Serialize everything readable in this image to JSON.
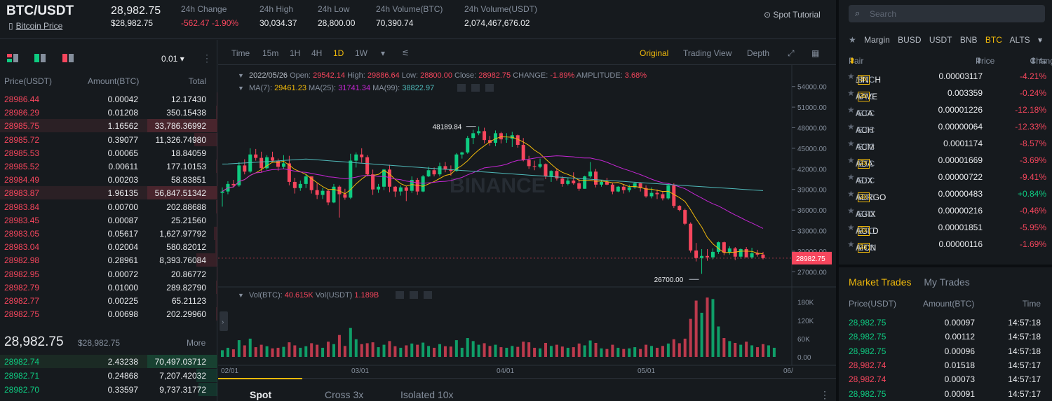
{
  "header": {
    "pair": "BTC/USDT",
    "subtitle": "Bitcoin Price",
    "last_price": "28,982.75",
    "last_price_usd": "$28,982.75",
    "stats": [
      {
        "label": "24h Change",
        "value": "-562.47 -1.90%",
        "red": true
      },
      {
        "label": "24h High",
        "value": "30,034.37"
      },
      {
        "label": "24h Low",
        "value": "28,800.00"
      },
      {
        "label": "24h Volume(BTC)",
        "value": "70,390.74"
      },
      {
        "label": "24h Volume(USDT)",
        "value": "2,074,467,676.02"
      }
    ],
    "tutorial": "Spot Tutorial"
  },
  "orderbook": {
    "tick": "0.01",
    "headers": {
      "price": "Price(USDT)",
      "amount": "Amount(BTC)",
      "total": "Total"
    },
    "asks": [
      {
        "p": "28986.44",
        "a": "0.00042",
        "t": "12.17430",
        "d": 0.01
      },
      {
        "p": "28986.29",
        "a": "0.01208",
        "t": "350.15438",
        "d": 0.02
      },
      {
        "p": "28985.75",
        "a": "1.16562",
        "t": "33,786.36992",
        "d": 1.0,
        "hl": true
      },
      {
        "p": "28985.72",
        "a": "0.39077",
        "t": "11,326.74980",
        "d": 0.33
      },
      {
        "p": "28985.53",
        "a": "0.00065",
        "t": "18.84059",
        "d": 0.01
      },
      {
        "p": "28985.52",
        "a": "0.00611",
        "t": "177.10153",
        "d": 0.02
      },
      {
        "p": "28984.49",
        "a": "0.00203",
        "t": "58.83851",
        "d": 0.01
      },
      {
        "p": "28983.87",
        "a": "1.96135",
        "t": "56,847.51342",
        "d": 1.0,
        "hl": true
      },
      {
        "p": "28983.84",
        "a": "0.00700",
        "t": "202.88688",
        "d": 0.02
      },
      {
        "p": "28983.45",
        "a": "0.00087",
        "t": "25.21560",
        "d": 0.01
      },
      {
        "p": "28983.05",
        "a": "0.05617",
        "t": "1,627.97792",
        "d": 0.05
      },
      {
        "p": "28983.04",
        "a": "0.02004",
        "t": "580.82012",
        "d": 0.03
      },
      {
        "p": "28982.98",
        "a": "0.28961",
        "t": "8,393.76084",
        "d": 0.3
      },
      {
        "p": "28982.95",
        "a": "0.00072",
        "t": "20.86772",
        "d": 0.01
      },
      {
        "p": "28982.79",
        "a": "0.01000",
        "t": "289.82790",
        "d": 0.02
      },
      {
        "p": "28982.77",
        "a": "0.00225",
        "t": "65.21123",
        "d": 0.01
      },
      {
        "p": "28982.75",
        "a": "0.00698",
        "t": "202.29960",
        "d": 0.02
      }
    ],
    "mid_price": "28,982.75",
    "mid_usd": "$28,982.75",
    "more": "More",
    "bids": [
      {
        "p": "28982.74",
        "a": "2.43238",
        "t": "70,497.03712",
        "d": 1.0,
        "hl": true
      },
      {
        "p": "28982.71",
        "a": "0.24868",
        "t": "7,207.42032",
        "d": 0.3
      },
      {
        "p": "28982.70",
        "a": "0.33597",
        "t": "9,737.31772",
        "d": 0.27
      }
    ]
  },
  "chart": {
    "toolbar": {
      "intervals": [
        "Time",
        "15m",
        "1H",
        "4H",
        "1D",
        "1W"
      ],
      "active_interval": "1D",
      "views": [
        "Original",
        "Trading View",
        "Depth"
      ],
      "active_view": "Original"
    },
    "ohlc_line": {
      "date": "2022/05/26",
      "open_label": "Open:",
      "open": "29542.14",
      "high_label": "High:",
      "high": "29886.64",
      "low_label": "Low:",
      "low": "28800.00",
      "close_label": "Close:",
      "close": "28982.75",
      "change_label": "CHANGE:",
      "change": "-1.89%",
      "amp_label": "AMPLITUDE:",
      "amp": "3.68%"
    },
    "ma_line": {
      "ma7_label": "MA(7):",
      "ma7": "29461.23",
      "ma25_label": "MA(25):",
      "ma25": "31741.34",
      "ma99_label": "MA(99):",
      "ma99": "38822.97"
    },
    "vol_line": {
      "vbtc_label": "Vol(BTC):",
      "vbtc": "40.615K",
      "vusdt_label": "Vol(USDT)",
      "vusdt": "1.189B"
    },
    "watermark": "BINANCE",
    "price_axis": [
      "54000.00",
      "51000.00",
      "48000.00",
      "45000.00",
      "42000.00",
      "39000.00",
      "36000.00",
      "33000.00",
      "30000.00",
      "27000.00"
    ],
    "vol_axis": [
      "180K",
      "120K",
      "60K",
      "0.00"
    ],
    "date_axis": [
      "02/01",
      "03/01",
      "04/01",
      "05/01",
      "06/"
    ],
    "high_marker": "48189.84",
    "low_marker": "26700.00",
    "current_price_tag": "28982.75",
    "colors": {
      "up": "#0ecb81",
      "down": "#f6465d",
      "ma7": "#f0b90b",
      "ma25": "#c526d4",
      "ma99": "#4fb9b9"
    }
  },
  "chart_data": {
    "type": "candlestick",
    "interval": "1D",
    "x": [
      "02/01",
      "03/01",
      "04/01",
      "05/01"
    ],
    "price_range": [
      25500,
      55500
    ],
    "volume_range": [
      0,
      200000
    ],
    "candles_ohlc_approx": [
      [
        38500,
        39300,
        36500,
        38700
      ],
      [
        38700,
        40200,
        38300,
        39800
      ],
      [
        39800,
        40400,
        39300,
        39600
      ],
      [
        39600,
        43000,
        39400,
        42500
      ],
      [
        42500,
        43400,
        41200,
        41600
      ],
      [
        41600,
        45000,
        41400,
        44100
      ],
      [
        44100,
        44900,
        43200,
        43600
      ],
      [
        43600,
        44500,
        41500,
        42100
      ],
      [
        42100,
        44000,
        41900,
        43700
      ],
      [
        43700,
        44500,
        42900,
        43200
      ],
      [
        43200,
        43500,
        41700,
        42300
      ],
      [
        42300,
        44000,
        42000,
        42800
      ],
      [
        42800,
        43900,
        39600,
        40100
      ],
      [
        40100,
        40700,
        38400,
        39200
      ],
      [
        39200,
        40300,
        38800,
        39800
      ],
      [
        39800,
        41300,
        39200,
        40900
      ],
      [
        40900,
        40900,
        38400,
        38900
      ],
      [
        38900,
        39900,
        37600,
        38200
      ],
      [
        38200,
        39200,
        37600,
        38800
      ],
      [
        38800,
        39000,
        36700,
        37100
      ],
      [
        37100,
        39800,
        37000,
        39400
      ],
      [
        39400,
        39600,
        34900,
        38300
      ],
      [
        38300,
        39100,
        37500,
        37800
      ],
      [
        37800,
        44200,
        37600,
        43200
      ],
      [
        43200,
        44400,
        42200,
        44100
      ],
      [
        44100,
        45000,
        42900,
        43700
      ],
      [
        43700,
        44000,
        40900,
        41200
      ],
      [
        41200,
        41900,
        38200,
        39000
      ],
      [
        39000,
        39800,
        38500,
        39400
      ],
      [
        39400,
        42000,
        38900,
        41900
      ],
      [
        41900,
        42600,
        38600,
        39400
      ],
      [
        39400,
        39500,
        37900,
        38700
      ],
      [
        38700,
        39600,
        38100,
        39300
      ],
      [
        39300,
        39500,
        37300,
        38800
      ],
      [
        38800,
        40900,
        38500,
        40400
      ],
      [
        40400,
        40700,
        38200,
        38700
      ],
      [
        38700,
        41100,
        38600,
        40900
      ],
      [
        40900,
        42300,
        40800,
        41800
      ],
      [
        41800,
        42200,
        40900,
        41200
      ],
      [
        41200,
        42900,
        40900,
        42400
      ],
      [
        42400,
        43000,
        41500,
        41900
      ],
      [
        41900,
        42500,
        41000,
        41700
      ],
      [
        41700,
        44300,
        41600,
        44100
      ],
      [
        44100,
        44500,
        43500,
        44400
      ],
      [
        44400,
        46800,
        44200,
        46500
      ],
      [
        46500,
        47700,
        45600,
        47200
      ],
      [
        47200,
        48190,
        46900,
        47500
      ],
      [
        47500,
        48000,
        45700,
        46200
      ],
      [
        46200,
        46800,
        45400,
        45800
      ],
      [
        45800,
        47600,
        45300,
        47200
      ],
      [
        47200,
        47400,
        45700,
        46300
      ],
      [
        46300,
        47200,
        45800,
        46400
      ],
      [
        46400,
        47400,
        45200,
        46900
      ],
      [
        46900,
        47000,
        45100,
        45500
      ],
      [
        45500,
        46500,
        43100,
        43300
      ],
      [
        43300,
        43900,
        42000,
        42400
      ],
      [
        42400,
        43200,
        41800,
        42300
      ],
      [
        42300,
        43500,
        42100,
        42700
      ],
      [
        42700,
        42800,
        40500,
        40900
      ],
      [
        40900,
        41800,
        40100,
        41700
      ],
      [
        41700,
        42100,
        40300,
        40600
      ],
      [
        40600,
        40900,
        39400,
        39800
      ],
      [
        39800,
        40700,
        39600,
        40300
      ],
      [
        40300,
        41500,
        39700,
        39900
      ],
      [
        39900,
        40500,
        38800,
        39100
      ],
      [
        39100,
        41000,
        39100,
        40900
      ],
      [
        40900,
        43000,
        40700,
        41600
      ],
      [
        41600,
        42000,
        39300,
        39700
      ],
      [
        39700,
        40400,
        39400,
        40100
      ],
      [
        40100,
        40700,
        39600,
        39700
      ],
      [
        39700,
        40000,
        38300,
        38700
      ],
      [
        38700,
        39500,
        38600,
        39400
      ],
      [
        39400,
        39700,
        38400,
        38900
      ],
      [
        38900,
        39700,
        38600,
        39300
      ],
      [
        39300,
        40100,
        39100,
        39900
      ],
      [
        39900,
        40000,
        38700,
        39200
      ],
      [
        39200,
        39600,
        37800,
        38000
      ],
      [
        38000,
        39300,
        37700,
        38500
      ],
      [
        38500,
        39000,
        37600,
        38300
      ],
      [
        38300,
        38700,
        37400,
        37700
      ],
      [
        37700,
        39900,
        37500,
        39600
      ],
      [
        39600,
        39900,
        36300,
        36600
      ],
      [
        36600,
        36700,
        35800,
        36000
      ],
      [
        36000,
        36200,
        33800,
        34000
      ],
      [
        34000,
        34200,
        29800,
        30100
      ],
      [
        30100,
        31200,
        28500,
        29000
      ],
      [
        29000,
        30300,
        26700,
        29300
      ],
      [
        29300,
        30300,
        28600,
        29100
      ],
      [
        29100,
        30400,
        28800,
        29900
      ],
      [
        29900,
        31400,
        29600,
        31300
      ],
      [
        31300,
        31400,
        29400,
        29800
      ],
      [
        29800,
        30700,
        29500,
        30400
      ],
      [
        30400,
        30600,
        28700,
        29200
      ],
      [
        29200,
        30400,
        28900,
        30300
      ],
      [
        30300,
        30600,
        29300,
        29100
      ],
      [
        29100,
        30500,
        28900,
        29700
      ],
      [
        29700,
        30200,
        29200,
        29500
      ],
      [
        29500,
        29900,
        28800,
        28983
      ]
    ],
    "volume_series": [
      22000,
      30000,
      25000,
      55000,
      38000,
      60000,
      32000,
      40000,
      35000,
      28000,
      30000,
      33000,
      48000,
      38000,
      30000,
      35000,
      45000,
      40000,
      30000,
      50000,
      42000,
      72000,
      36000,
      95000,
      58000,
      42000,
      45000,
      48000,
      32000,
      40000,
      52000,
      35000,
      30000,
      38000,
      44000,
      40000,
      47000,
      36000,
      30000,
      42000,
      35000,
      34000,
      55000,
      30000,
      62000,
      52000,
      40000,
      45000,
      36000,
      40000,
      32000,
      30000,
      36000,
      33000,
      50000,
      48000,
      30000,
      28000,
      46000,
      36000,
      40000,
      34000,
      30000,
      32000,
      44000,
      38000,
      54000,
      46000,
      28000,
      26000,
      40000,
      30000,
      26000,
      28000,
      32000,
      26000,
      40000,
      36000,
      30000,
      36000,
      44000,
      58000,
      45000,
      60000,
      125000,
      185000,
      145000,
      195000,
      190000,
      100000,
      62000,
      52000,
      46000,
      40000,
      50000,
      38000,
      32000,
      42000,
      38000,
      30000
    ],
    "ma7_approx_last": 29461.23,
    "ma25_approx_last": 31741.34,
    "ma99_approx_last": 38822.97
  },
  "bottom_tabs": [
    "Spot",
    "Cross 3x",
    "Isolated 10x"
  ],
  "market": {
    "search_placeholder": "Search",
    "tabs": [
      "Margin",
      "BUSD",
      "USDT",
      "BNB",
      "BTC",
      "ALTS"
    ],
    "active_tab": "BTC",
    "headers": {
      "pair": "Pair",
      "price": "Price",
      "change": "Change"
    },
    "rows": [
      {
        "base": "1INCH",
        "quote": "/BTC",
        "lev": "3x",
        "price": "0.00003117",
        "change": "-4.21%",
        "price_green": true
      },
      {
        "base": "AAVE",
        "quote": "/BTC",
        "lev": "3x",
        "price": "0.003359",
        "change": "-0.24%",
        "price_red": true
      },
      {
        "base": "ACA",
        "quote": "/BTC",
        "lev": "",
        "price": "0.00001226",
        "change": "-12.18%"
      },
      {
        "base": "ACH",
        "quote": "/BTC",
        "lev": "",
        "price": "0.00000064",
        "change": "-12.33%"
      },
      {
        "base": "ACM",
        "quote": "/BTC",
        "lev": "",
        "price": "0.0001174",
        "change": "-8.57%"
      },
      {
        "base": "ADA",
        "quote": "/BTC",
        "lev": "3x",
        "price": "0.00001669",
        "change": "-3.69%"
      },
      {
        "base": "ADX",
        "quote": "/BTC",
        "lev": "",
        "price": "0.00000722",
        "change": "-9.41%"
      },
      {
        "base": "AERGO",
        "quote": "/BTC",
        "lev": "3x",
        "price": "0.00000483",
        "change": "+0.84%",
        "up": true
      },
      {
        "base": "AGIX",
        "quote": "/BTC",
        "lev": "",
        "price": "0.00000216",
        "change": "-0.46%"
      },
      {
        "base": "AGLD",
        "quote": "/BTC",
        "lev": "3x",
        "price": "0.00001851",
        "change": "-5.95%"
      },
      {
        "base": "AION",
        "quote": "/BTC",
        "lev": "3x",
        "price": "0.00000116",
        "change": "-1.69%"
      }
    ]
  },
  "trades": {
    "tabs": [
      "Market Trades",
      "My Trades"
    ],
    "headers": {
      "price": "Price(USDT)",
      "amount": "Amount(BTC)",
      "time": "Time"
    },
    "rows": [
      {
        "price": "28,982.75",
        "amount": "0.00097",
        "time": "14:57:18",
        "up": true
      },
      {
        "price": "28,982.75",
        "amount": "0.00112",
        "time": "14:57:18",
        "up": true
      },
      {
        "price": "28,982.75",
        "amount": "0.00096",
        "time": "14:57:18",
        "up": true
      },
      {
        "price": "28,982.74",
        "amount": "0.01518",
        "time": "14:57:17",
        "up": false
      },
      {
        "price": "28,982.74",
        "amount": "0.00073",
        "time": "14:57:17",
        "up": false
      },
      {
        "price": "28,982.75",
        "amount": "0.00091",
        "time": "14:57:17",
        "up": true
      }
    ]
  }
}
